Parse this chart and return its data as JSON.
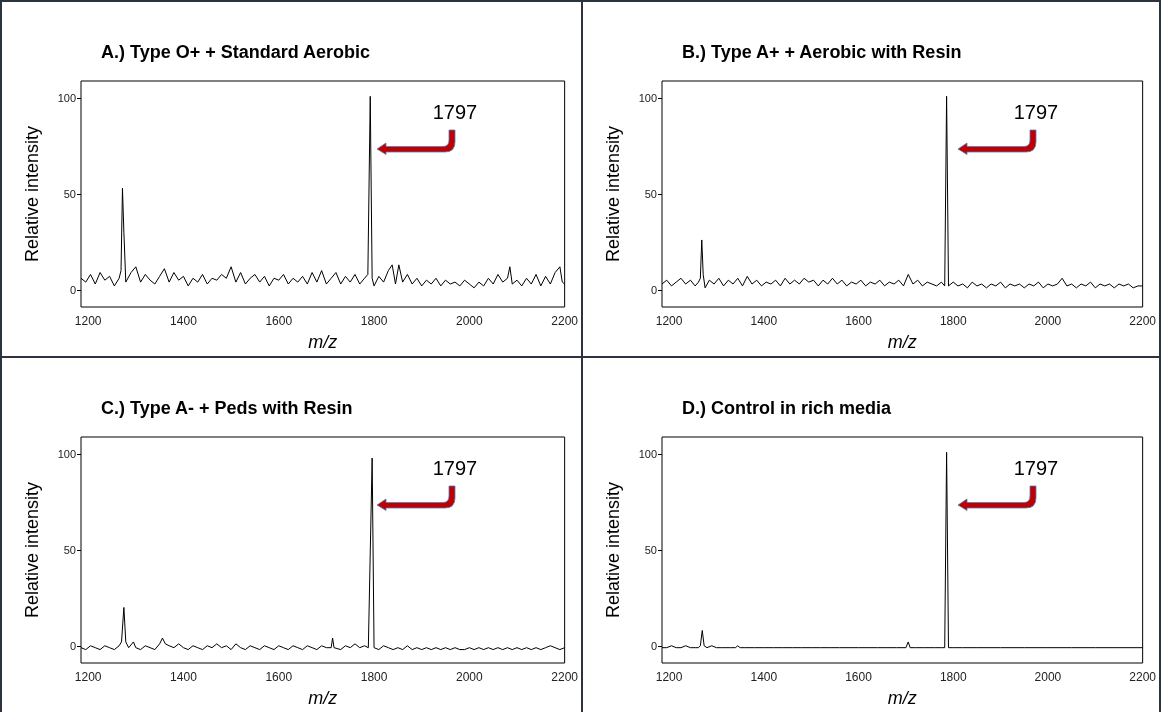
{
  "chart_data": [
    {
      "type": "line",
      "title": "A.) Type O+ + Standard Aerobic",
      "xlabel": "m/z",
      "ylabel": "Relative intensity",
      "color": "#000000",
      "marker": "none",
      "grid": false,
      "xlim": [
        1185,
        2200
      ],
      "ylim": [
        -9,
        109
      ],
      "xticks": [
        1200,
        1400,
        1600,
        1800,
        2000,
        2200
      ],
      "yticks": [
        0,
        50,
        100
      ],
      "annotations": [
        "1797"
      ],
      "x": [
        1185,
        1195,
        1205,
        1215,
        1225,
        1235,
        1245,
        1255,
        1265,
        1269,
        1272,
        1275,
        1279,
        1290,
        1300,
        1310,
        1320,
        1330,
        1340,
        1350,
        1360,
        1370,
        1380,
        1390,
        1400,
        1410,
        1420,
        1430,
        1440,
        1450,
        1460,
        1470,
        1480,
        1490,
        1500,
        1510,
        1520,
        1530,
        1540,
        1550,
        1560,
        1570,
        1580,
        1590,
        1600,
        1610,
        1620,
        1630,
        1640,
        1650,
        1660,
        1670,
        1680,
        1690,
        1700,
        1710,
        1720,
        1730,
        1740,
        1750,
        1760,
        1770,
        1780,
        1787,
        1792,
        1796,
        1800,
        1810,
        1820,
        1830,
        1838,
        1845,
        1852,
        1860,
        1870,
        1880,
        1890,
        1900,
        1910,
        1920,
        1930,
        1940,
        1950,
        1960,
        1970,
        1980,
        1990,
        2000,
        2010,
        2020,
        2030,
        2040,
        2050,
        2060,
        2070,
        2080,
        2085,
        2090,
        2100,
        2110,
        2120,
        2130,
        2140,
        2150,
        2160,
        2170,
        2180,
        2190,
        2195,
        2200
      ],
      "values": [
        6,
        4,
        8,
        3,
        9,
        5,
        7,
        2,
        6,
        10,
        53,
        30,
        4,
        9,
        12,
        4,
        8,
        5,
        3,
        7,
        11,
        4,
        9,
        5,
        7,
        2,
        6,
        4,
        8,
        3,
        6,
        5,
        8,
        6,
        12,
        4,
        9,
        3,
        6,
        8,
        4,
        7,
        2,
        6,
        5,
        8,
        3,
        6,
        4,
        7,
        3,
        9,
        4,
        10,
        3,
        6,
        9,
        3,
        7,
        4,
        8,
        3,
        6,
        8,
        101,
        6,
        2,
        7,
        4,
        10,
        13,
        3,
        13,
        4,
        8,
        3,
        6,
        2,
        5,
        3,
        6,
        2,
        5,
        3,
        4,
        2,
        5,
        3,
        1,
        4,
        2,
        6,
        3,
        8,
        4,
        6,
        12,
        3,
        5,
        2,
        6,
        3,
        8,
        2,
        7,
        3,
        9,
        12,
        4,
        3
      ]
    },
    {
      "type": "line",
      "title": "B.) Type A+ + Aerobic with Resin",
      "xlabel": "m/z",
      "ylabel": "Relative intensity",
      "color": "#000000",
      "marker": "none",
      "grid": false,
      "xlim": [
        1185,
        2200
      ],
      "ylim": [
        -9,
        109
      ],
      "xticks": [
        1200,
        1400,
        1600,
        1800,
        2000,
        2200
      ],
      "yticks": [
        0,
        50,
        100
      ],
      "annotations": [
        "1797"
      ],
      "x": [
        1185,
        1195,
        1205,
        1215,
        1225,
        1235,
        1245,
        1255,
        1262,
        1266,
        1269,
        1272,
        1276,
        1285,
        1295,
        1305,
        1315,
        1325,
        1335,
        1345,
        1355,
        1365,
        1375,
        1385,
        1395,
        1405,
        1415,
        1425,
        1435,
        1445,
        1455,
        1465,
        1475,
        1485,
        1495,
        1505,
        1515,
        1525,
        1535,
        1545,
        1555,
        1565,
        1575,
        1585,
        1595,
        1605,
        1615,
        1625,
        1635,
        1645,
        1655,
        1665,
        1675,
        1685,
        1695,
        1705,
        1715,
        1725,
        1735,
        1745,
        1755,
        1765,
        1775,
        1782,
        1786,
        1790,
        1800,
        1810,
        1820,
        1830,
        1840,
        1850,
        1860,
        1870,
        1880,
        1890,
        1900,
        1910,
        1920,
        1930,
        1940,
        1950,
        1960,
        1970,
        1980,
        1990,
        2000,
        2010,
        2020,
        2030,
        2040,
        2050,
        2060,
        2070,
        2080,
        2090,
        2100,
        2110,
        2120,
        2130,
        2140,
        2150,
        2160,
        2170,
        2180,
        2190,
        2200
      ],
      "values": [
        3,
        5,
        2,
        4,
        6,
        3,
        5,
        2,
        4,
        6,
        26,
        8,
        1,
        5,
        3,
        6,
        2,
        5,
        3,
        6,
        2,
        7,
        3,
        5,
        2,
        4,
        3,
        5,
        2,
        6,
        3,
        5,
        3,
        6,
        4,
        5,
        2,
        5,
        3,
        6,
        3,
        5,
        2,
        4,
        3,
        5,
        2,
        4,
        3,
        5,
        2,
        4,
        3,
        5,
        2,
        8,
        3,
        5,
        2,
        4,
        3,
        2,
        4,
        2,
        101,
        2,
        4,
        2,
        3,
        1,
        4,
        2,
        3,
        1,
        3,
        2,
        4,
        1,
        3,
        2,
        3,
        1,
        3,
        2,
        4,
        1,
        3,
        2,
        3,
        6,
        2,
        3,
        1,
        3,
        2,
        4,
        1,
        3,
        2,
        3,
        1,
        3,
        2,
        3,
        1,
        2,
        2
      ]
    },
    {
      "type": "line",
      "title": "C.) Type A- + Peds with Resin",
      "xlabel": "m/z",
      "ylabel": "Relative intensity",
      "color": "#000000",
      "marker": "none",
      "grid": false,
      "xlim": [
        1185,
        2200
      ],
      "ylim": [
        -9,
        109
      ],
      "xticks": [
        1200,
        1400,
        1600,
        1800,
        2000,
        2200
      ],
      "yticks": [
        0,
        50,
        100
      ],
      "annotations": [
        "1797"
      ],
      "x": [
        1185,
        1195,
        1205,
        1215,
        1225,
        1235,
        1245,
        1255,
        1265,
        1270,
        1275,
        1279,
        1285,
        1295,
        1300,
        1310,
        1320,
        1330,
        1340,
        1350,
        1356,
        1362,
        1370,
        1380,
        1390,
        1400,
        1410,
        1420,
        1430,
        1440,
        1450,
        1460,
        1470,
        1480,
        1490,
        1500,
        1510,
        1520,
        1530,
        1540,
        1550,
        1560,
        1570,
        1580,
        1590,
        1600,
        1610,
        1620,
        1630,
        1640,
        1650,
        1660,
        1670,
        1680,
        1690,
        1700,
        1710,
        1713,
        1716,
        1730,
        1740,
        1750,
        1760,
        1770,
        1780,
        1788,
        1796,
        1800,
        1810,
        1820,
        1830,
        1840,
        1850,
        1860,
        1870,
        1880,
        1890,
        1900,
        1910,
        1920,
        1930,
        1940,
        1950,
        1960,
        1970,
        1980,
        1990,
        2000,
        2010,
        2020,
        2030,
        2040,
        2050,
        2060,
        2070,
        2080,
        2090,
        2100,
        2110,
        2120,
        2130,
        2140,
        2150,
        2160,
        2170,
        2180,
        2190,
        2200
      ],
      "values": [
        -1,
        -2,
        0,
        -1,
        -2,
        0,
        -1,
        -2,
        0,
        2,
        20,
        2,
        -1,
        2,
        -1,
        -2,
        0,
        -1,
        -2,
        1,
        4,
        1,
        0,
        -1,
        1,
        -1,
        -2,
        0,
        -1,
        -2,
        0,
        -1,
        1,
        -1,
        0,
        -2,
        1,
        -1,
        -2,
        0,
        -1,
        -2,
        0,
        -1,
        -2,
        0,
        -1,
        -2,
        0,
        -1,
        -2,
        0,
        -1,
        -2,
        0,
        -1,
        -1,
        4,
        -1,
        -2,
        0,
        -1,
        1,
        -1,
        0,
        -1,
        98,
        -1,
        -2,
        0,
        -1,
        -2,
        -1,
        -2,
        0,
        -2,
        -1,
        -2,
        -1,
        -2,
        -1,
        -2,
        -1,
        -2,
        -1,
        -2,
        -2,
        -1,
        -2,
        -1,
        -2,
        -1,
        -2,
        -1,
        -2,
        -1,
        -2,
        -1,
        -2,
        -1,
        -2,
        -1,
        -2,
        -1,
        0,
        -1,
        -2,
        -1
      ]
    },
    {
      "type": "line",
      "title": "D.) Control in rich media",
      "xlabel": "m/z",
      "ylabel": "Relative intensity",
      "color": "#000000",
      "marker": "none",
      "grid": false,
      "xlim": [
        1185,
        2200
      ],
      "ylim": [
        -9,
        109
      ],
      "xticks": [
        1200,
        1400,
        1600,
        1800,
        2000,
        2200
      ],
      "yticks": [
        0,
        50,
        100
      ],
      "annotations": [
        "1797"
      ],
      "x": [
        1185,
        1195,
        1205,
        1215,
        1225,
        1235,
        1245,
        1255,
        1262,
        1266,
        1270,
        1274,
        1280,
        1290,
        1300,
        1310,
        1320,
        1330,
        1340,
        1345,
        1350,
        1360,
        1380,
        1400,
        1420,
        1440,
        1460,
        1480,
        1500,
        1520,
        1540,
        1560,
        1580,
        1600,
        1620,
        1640,
        1660,
        1680,
        1700,
        1705,
        1709,
        1720,
        1740,
        1760,
        1775,
        1782,
        1786,
        1790,
        1800,
        1820,
        1850,
        1900,
        1950,
        2000,
        2050,
        2100,
        2150,
        2200
      ],
      "values": [
        -1,
        -1,
        0,
        -1,
        -1,
        0,
        -1,
        -1,
        -1,
        0,
        8,
        0,
        -1,
        0,
        -1,
        -1,
        -1,
        -1,
        -1,
        0,
        -1,
        -1,
        -1,
        -1,
        -1,
        -1,
        -1,
        -1,
        -1,
        -1,
        -1,
        -1,
        -1,
        -1,
        -1,
        -1,
        -1,
        -1,
        -1,
        2,
        -1,
        -1,
        -1,
        -1,
        -1,
        -1,
        101,
        -1,
        -1,
        -1,
        -1,
        -1,
        -1,
        -1,
        -1,
        -1,
        -1,
        -1
      ]
    }
  ]
}
